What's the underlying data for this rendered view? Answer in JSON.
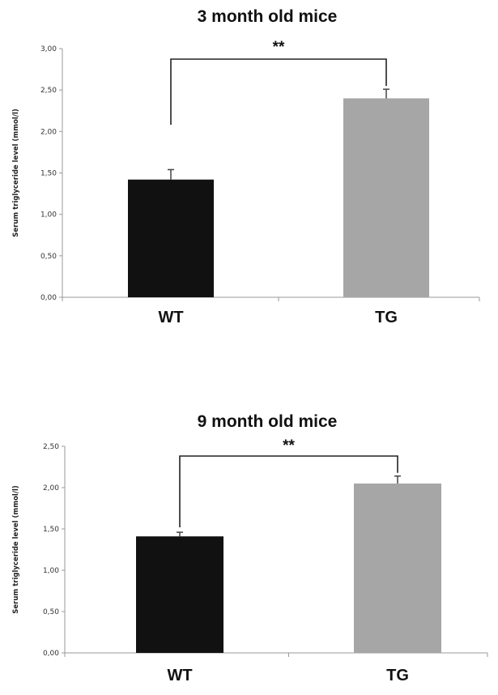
{
  "chart_data": [
    {
      "type": "bar",
      "title": "3 month old mice",
      "ylabel": "Serum triglyceride level (mmol/l)",
      "xlabel": "",
      "categories": [
        "WT",
        "TG"
      ],
      "values": [
        1.42,
        2.4
      ],
      "errors": [
        0.12,
        0.11
      ],
      "bar_colors": [
        "#111111",
        "#a6a6a6"
      ],
      "ylim": [
        0,
        3.0
      ],
      "yticks": [
        0,
        0.5,
        1.0,
        1.5,
        2.0,
        2.5,
        3.0
      ],
      "ytick_labels": [
        "0,00",
        "0,50",
        "1,00",
        "1,50",
        "2,00",
        "2,50",
        "3,00"
      ],
      "significance": {
        "label": "**",
        "from": 0,
        "to": 1
      },
      "grid": false,
      "legend": "none"
    },
    {
      "type": "bar",
      "title": "9 month old mice",
      "ylabel": "Serum triglyceride level (mmol/l)",
      "xlabel": "",
      "categories": [
        "WT",
        "TG"
      ],
      "values": [
        1.41,
        2.05
      ],
      "errors": [
        0.05,
        0.09
      ],
      "bar_colors": [
        "#111111",
        "#a6a6a6"
      ],
      "ylim": [
        0,
        2.5
      ],
      "yticks": [
        0,
        0.5,
        1.0,
        1.5,
        2.0,
        2.5
      ],
      "ytick_labels": [
        "0,00",
        "0,50",
        "1,00",
        "1,50",
        "2,00",
        "2,50"
      ],
      "significance": {
        "label": "**",
        "from": 0,
        "to": 1
      },
      "grid": false,
      "legend": "none"
    }
  ]
}
